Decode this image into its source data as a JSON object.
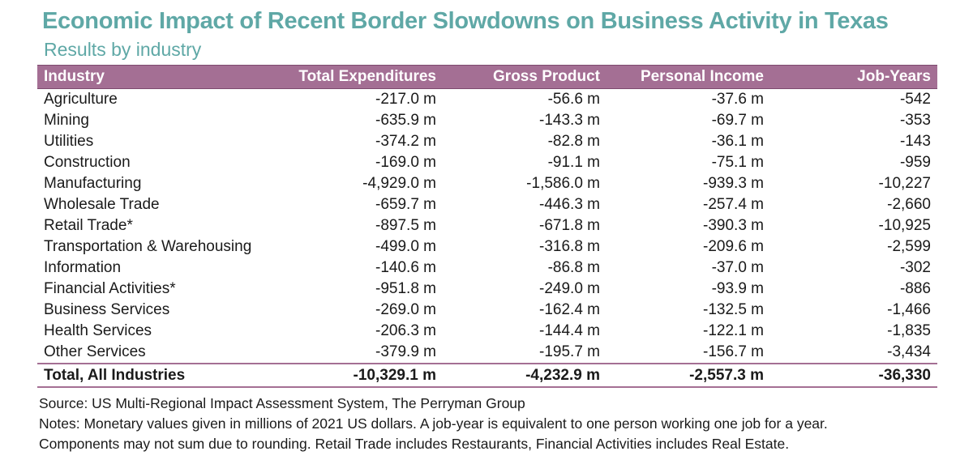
{
  "title": "Economic Impact of Recent Border Slowdowns on Business Activity in Texas",
  "subtitle": "Results by industry",
  "columns": [
    "Industry",
    "Total Expenditures",
    "Gross Product",
    "Personal Income",
    "Job-Years"
  ],
  "rows": [
    [
      "Agriculture",
      "-217.0 m",
      "-56.6 m",
      "-37.6 m",
      "-542"
    ],
    [
      "Mining",
      "-635.9 m",
      "-143.3 m",
      "-69.7 m",
      "-353"
    ],
    [
      "Utilities",
      "-374.2 m",
      "-82.8 m",
      "-36.1 m",
      "-143"
    ],
    [
      "Construction",
      "-169.0 m",
      "-91.1 m",
      "-75.1 m",
      "-959"
    ],
    [
      "Manufacturing",
      "-4,929.0 m",
      "-1,586.0 m",
      "-939.3 m",
      "-10,227"
    ],
    [
      "Wholesale Trade",
      "-659.7 m",
      "-446.3 m",
      "-257.4 m",
      "-2,660"
    ],
    [
      "Retail Trade*",
      "-897.5 m",
      "-671.8 m",
      "-390.3 m",
      "-10,925"
    ],
    [
      "Transportation & Warehousing",
      "-499.0 m",
      "-316.8 m",
      "-209.6 m",
      "-2,599"
    ],
    [
      "Information",
      "-140.6 m",
      "-86.8 m",
      "-37.0 m",
      "-302"
    ],
    [
      "Financial Activities*",
      "-951.8 m",
      "-249.0 m",
      "-93.9 m",
      "-886"
    ],
    [
      "Business Services",
      "-269.0 m",
      "-162.4 m",
      "-132.5 m",
      "-1,466"
    ],
    [
      "Health Services",
      "-206.3 m",
      "-144.4 m",
      "-122.1 m",
      "-1,835"
    ],
    [
      "Other Services",
      "-379.9 m",
      "-195.7 m",
      "-156.7 m",
      "-3,434"
    ]
  ],
  "total": [
    "Total, All Industries",
    "-10,329.1 m",
    "-4,232.9 m",
    "-2,557.3 m",
    "-36,330"
  ],
  "notes": {
    "source": "Source: US Multi-Regional Impact Assessment System, The Perryman Group",
    "line1": "Notes: Monetary values given in millions of 2021 US dollars. A job-year is equivalent to one person working one job for a year.",
    "line2": "Components may not sum due to rounding. Retail Trade includes Restaurants, Financial Activities includes Real Estate."
  },
  "colors": {
    "title": "#5fa8a6",
    "header_bg": "#a46f94",
    "header_text": "#ffffff",
    "total_rule": "#a46f94"
  }
}
